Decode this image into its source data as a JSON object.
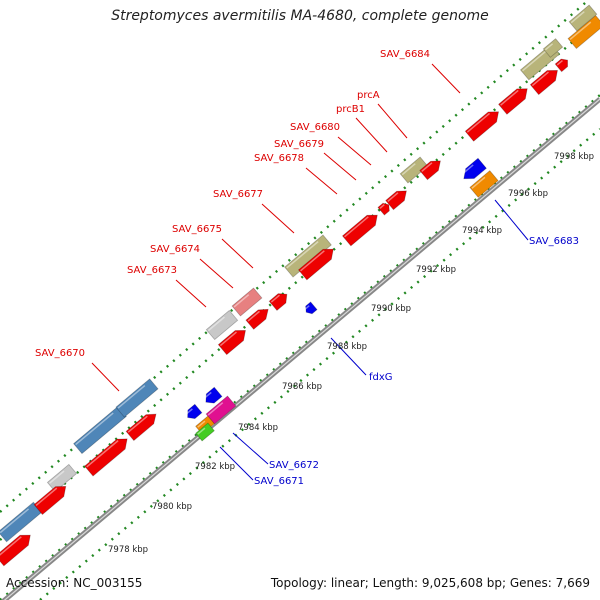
{
  "title": "Streptomyces avermitilis MA-4680, complete genome",
  "footer": {
    "accession": "Accession: NC_003155",
    "summary": "Topology: linear; Length: 9,025,608 bp; Genes: 7,669"
  },
  "colors": {
    "cds_red": "#ee0000",
    "gray_gene": "#c8c8c8",
    "pink_gene": "#e78080",
    "olive_gene": "#b8b47a",
    "steelblue_gene": "#4f86b8",
    "blue_gene": "#0000ee",
    "orange_gene": "#f08a00",
    "magenta_gene": "#e01090",
    "green_gene": "#44cc22",
    "label_red": "#dd0000",
    "label_blue": "#0000cc",
    "dot_green": "#228822",
    "backbone_gray": "#888888"
  },
  "ticks": [
    {
      "label": "7978 kbp"
    },
    {
      "label": "7980 kbp"
    },
    {
      "label": "7982 kbp"
    },
    {
      "label": "7984 kbp"
    },
    {
      "label": "7986 kbp"
    },
    {
      "label": "7988 kbp"
    },
    {
      "label": "7990 kbp"
    },
    {
      "label": "7992 kbp"
    },
    {
      "label": "7994 kbp"
    },
    {
      "label": "7996 kbp"
    },
    {
      "label": "7998 kbp"
    }
  ],
  "gene_labels_forward": [
    {
      "name": "SAV_6670"
    },
    {
      "name": "SAV_6673"
    },
    {
      "name": "SAV_6674"
    },
    {
      "name": "SAV_6675"
    },
    {
      "name": "SAV_6677"
    },
    {
      "name": "SAV_6678"
    },
    {
      "name": "SAV_6679"
    },
    {
      "name": "SAV_6680"
    },
    {
      "name": "prcB1"
    },
    {
      "name": "prcA"
    },
    {
      "name": "SAV_6684"
    }
  ],
  "gene_labels_reverse": [
    {
      "name": "SAV_6671"
    },
    {
      "name": "SAV_6672"
    },
    {
      "name": "fdxG"
    },
    {
      "name": "SAV_6683"
    }
  ]
}
